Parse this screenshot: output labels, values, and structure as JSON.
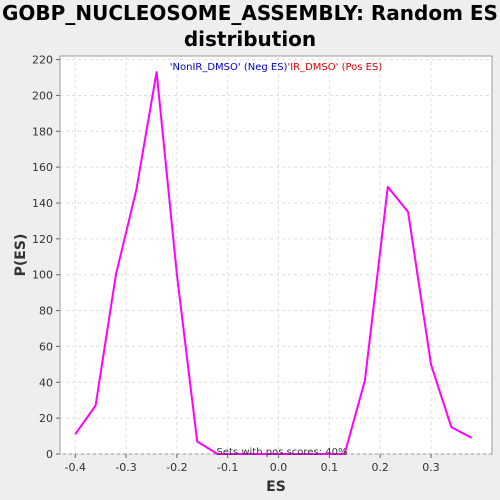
{
  "chart_data": {
    "type": "line",
    "title_line1": "GOBP_NUCLEOSOME_ASSEMBLY: Random ES",
    "title_line2": "distribution",
    "xlabel": "ES",
    "ylabel": "P(ES)",
    "xlim": [
      -0.43,
      0.42
    ],
    "ylim": [
      0,
      222
    ],
    "x_ticks": [
      "-0.4",
      "-0.3",
      "-0.2",
      "-0.1",
      "0.0",
      "0.1",
      "0.2",
      "0.3"
    ],
    "x_tick_values": [
      -0.4,
      -0.3,
      -0.2,
      -0.1,
      0.0,
      0.1,
      0.2,
      0.3
    ],
    "y_ticks": [
      "0",
      "20",
      "40",
      "60",
      "80",
      "100",
      "120",
      "140",
      "160",
      "180",
      "200",
      "220"
    ],
    "y_tick_values": [
      0,
      20,
      40,
      60,
      80,
      100,
      120,
      140,
      160,
      180,
      200,
      220
    ],
    "grid": true,
    "legend": {
      "neg_label": "'NonIR_DMSO' (Neg ES)",
      "neg_color": "#0000cc",
      "pos_label": "'IR_DMSO' (Pos ES)",
      "pos_color": "#dd0000",
      "position": "top-center"
    },
    "annotation": "Sets with pos scores: 40%",
    "series": [
      {
        "color": "#ff00ff",
        "x": [
          -0.4,
          -0.36,
          -0.32,
          -0.28,
          -0.24,
          -0.2,
          -0.16,
          -0.12,
          -0.08,
          -0.04,
          0.0,
          0.04,
          0.09,
          0.13,
          0.17,
          0.215,
          0.255,
          0.3,
          0.34,
          0.38
        ],
        "y": [
          11,
          27,
          100,
          147,
          213,
          100,
          7,
          0,
          0,
          0,
          0,
          0,
          0,
          0,
          41,
          149,
          135,
          50,
          15,
          9
        ]
      }
    ]
  }
}
